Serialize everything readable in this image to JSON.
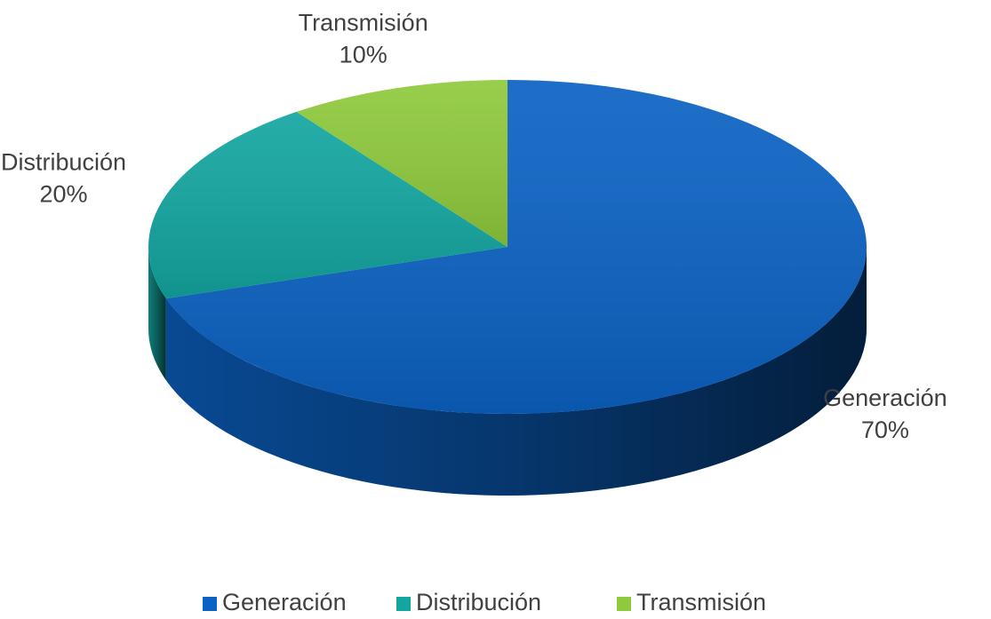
{
  "chart_data": {
    "type": "pie",
    "categories": [
      "Generación",
      "Distribución",
      "Transmisión"
    ],
    "values": [
      70,
      20,
      10
    ],
    "value_labels": [
      "70%",
      "20%",
      "10%"
    ],
    "colors": [
      "#0b62c4",
      "#13a6a1",
      "#8fca3c"
    ],
    "legend": "bottom"
  }
}
